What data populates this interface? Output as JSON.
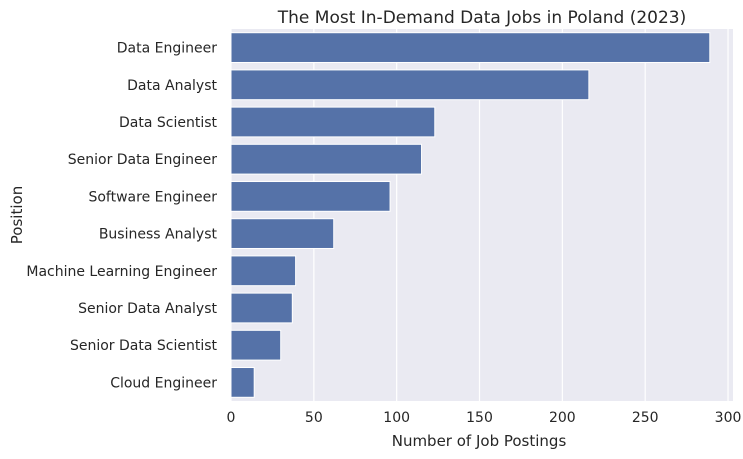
{
  "chart_data": {
    "type": "bar",
    "orientation": "horizontal",
    "title": "The Most In-Demand Data Jobs in Poland (2023)",
    "xlabel": "Number of Job Postings",
    "ylabel": "Position",
    "categories": [
      "Data Engineer",
      "Data Analyst",
      "Data Scientist",
      "Senior Data Engineer",
      "Software Engineer",
      "Business Analyst",
      "Machine Learning Engineer",
      "Senior Data Analyst",
      "Senior Data Scientist",
      "Cloud Engineer"
    ],
    "values": [
      289,
      216,
      123,
      115,
      96,
      62,
      39,
      37,
      30,
      14
    ],
    "xlim": [
      0,
      303
    ],
    "xticks": [
      0,
      50,
      100,
      150,
      200,
      250,
      300
    ],
    "xtick_labels": [
      "0",
      "50",
      "100",
      "150",
      "200",
      "250",
      "300"
    ],
    "grid": true,
    "bar_color": "#5572a8",
    "plot_background": "#eaeaf2",
    "grid_color": "#ffffff"
  }
}
